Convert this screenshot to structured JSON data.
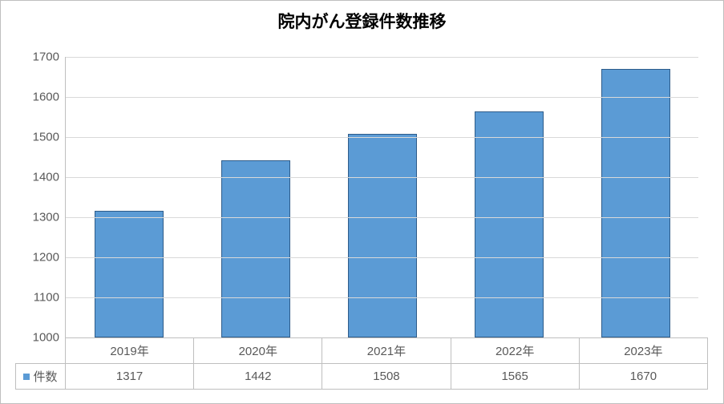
{
  "chart": {
    "type": "bar",
    "title": "院内がん登録件数推移",
    "title_fontsize": 21,
    "title_color": "#000000",
    "categories": [
      "2019年",
      "2020年",
      "2021年",
      "2022年",
      "2023年"
    ],
    "series_name": "件数",
    "values": [
      1317,
      1442,
      1508,
      1565,
      1670
    ],
    "bar_color": "#5b9bd5",
    "bar_border_color": "#2e5c8a",
    "ylim_min": 1000,
    "ylim_max": 1700,
    "ytick_step": 100,
    "yticks": [
      1000,
      1100,
      1200,
      1300,
      1400,
      1500,
      1600,
      1700
    ],
    "tick_fontsize": 15,
    "tick_color": "#595959",
    "grid_color": "#d9d9d9",
    "axis_color": "#bfbfbf",
    "background_color": "#ffffff",
    "bar_width_ratio": 0.55,
    "legend_swatch_color": "#5b9bd5"
  }
}
